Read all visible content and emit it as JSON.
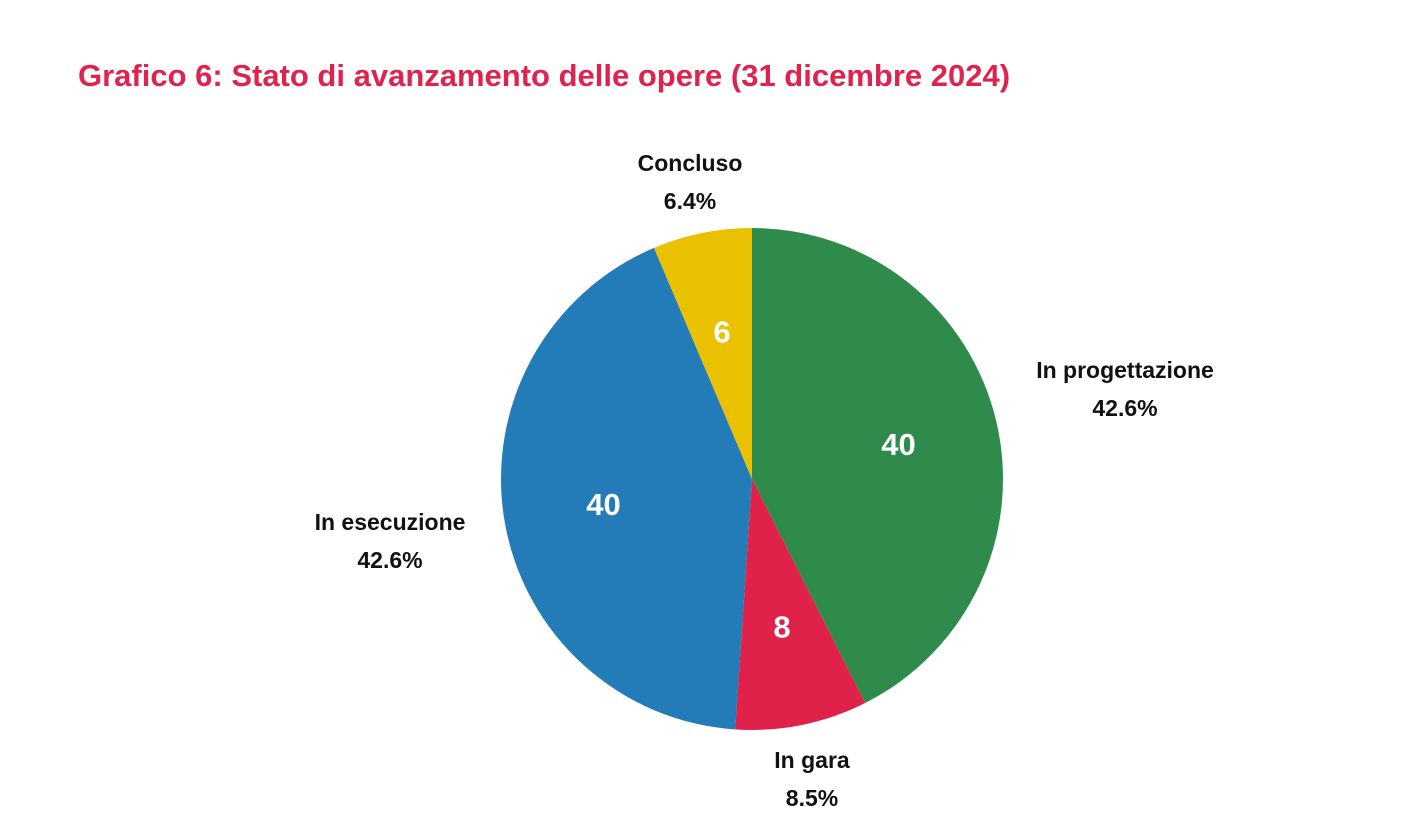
{
  "chart_data": {
    "type": "pie",
    "title": "Grafico 6: Stato di avanzamento delle opere (31 dicembre 2024)",
    "start": "top",
    "direction": "clockwise",
    "slices": [
      {
        "label": "In progettazione",
        "value": 40,
        "percent": "42.6%",
        "color": "#2E8B4B"
      },
      {
        "label": "In gara",
        "value": 8,
        "percent": "8.5%",
        "color": "#E0224A"
      },
      {
        "label": "In esecuzione",
        "value": 40,
        "percent": "42.6%",
        "color": "#237BB7"
      },
      {
        "label": "Concluso",
        "value": 6,
        "percent": "6.4%",
        "color": "#EAC100"
      }
    ]
  }
}
